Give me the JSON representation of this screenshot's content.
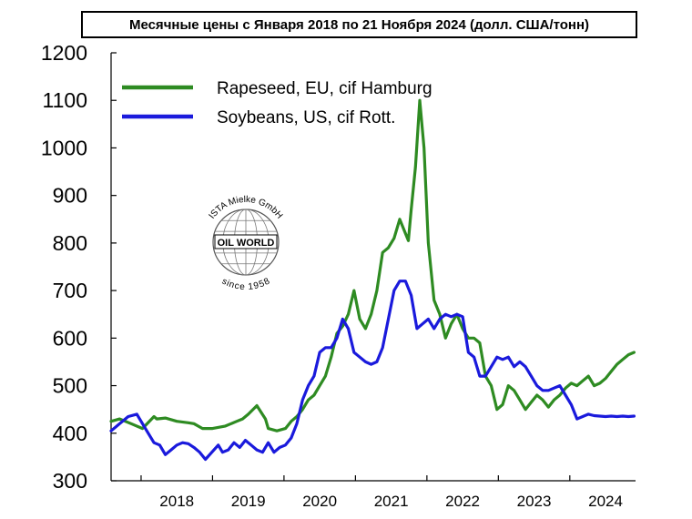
{
  "chart_data": {
    "type": "line",
    "title": "Месячные цены с Января 2018 по 21 Ноября 2024 (долл. США/тонн)",
    "xlabel": "",
    "ylabel": "",
    "ylim": [
      300,
      1200
    ],
    "yticks": [
      300,
      400,
      500,
      600,
      700,
      800,
      900,
      1000,
      1100,
      1200
    ],
    "x_range": [
      2017.58,
      2024.92
    ],
    "xticks": [
      "2018",
      "2019",
      "2020",
      "2021",
      "2022",
      "2023",
      "2024"
    ],
    "grid": false,
    "legend_position": "top-left",
    "series": [
      {
        "name": "Rapeseed, EU, cif Hamburg",
        "color": "#2e8b22",
        "x": [
          2017.58,
          2017.7,
          2017.86,
          2018.02,
          2018.18,
          2018.22,
          2018.34,
          2018.5,
          2018.66,
          2018.74,
          2018.86,
          2019.0,
          2019.18,
          2019.34,
          2019.42,
          2019.5,
          2019.62,
          2019.74,
          2019.78,
          2019.9,
          2020.02,
          2020.1,
          2020.18,
          2020.26,
          2020.34,
          2020.42,
          2020.5,
          2020.58,
          2020.66,
          2020.74,
          2020.82,
          2020.9,
          2020.98,
          2021.06,
          2021.14,
          2021.22,
          2021.3,
          2021.38,
          2021.46,
          2021.54,
          2021.62,
          2021.7,
          2021.74,
          2021.78,
          2021.84,
          2021.9,
          2021.96,
          2022.02,
          2022.1,
          2022.18,
          2022.26,
          2022.34,
          2022.42,
          2022.5,
          2022.58,
          2022.66,
          2022.74,
          2022.82,
          2022.9,
          2022.98,
          2023.06,
          2023.14,
          2023.22,
          2023.3,
          2023.38,
          2023.46,
          2023.54,
          2023.62,
          2023.7,
          2023.78,
          2023.86,
          2023.94,
          2024.02,
          2024.1,
          2024.18,
          2024.26,
          2024.34,
          2024.42,
          2024.5,
          2024.58,
          2024.66,
          2024.74,
          2024.82,
          2024.9
        ],
        "y": [
          425,
          430,
          420,
          410,
          435,
          430,
          432,
          425,
          422,
          420,
          410,
          410,
          415,
          425,
          430,
          440,
          458,
          430,
          410,
          405,
          410,
          425,
          435,
          450,
          470,
          480,
          500,
          520,
          560,
          610,
          625,
          650,
          700,
          640,
          620,
          650,
          700,
          780,
          790,
          810,
          850,
          820,
          805,
          870,
          960,
          1100,
          1000,
          800,
          680,
          650,
          600,
          630,
          650,
          620,
          600,
          600,
          590,
          520,
          500,
          450,
          460,
          500,
          490,
          470,
          450,
          465,
          480,
          470,
          455,
          470,
          480,
          495,
          505,
          500,
          510,
          520,
          500,
          505,
          515,
          530,
          545,
          555,
          565,
          570
        ],
        "note": ""
      },
      {
        "name": "Soybeans, US, cif Rott.",
        "color": "#1a1adc",
        "x": [
          2017.58,
          2017.7,
          2017.82,
          2017.94,
          2018.02,
          2018.1,
          2018.18,
          2018.26,
          2018.34,
          2018.42,
          2018.5,
          2018.58,
          2018.66,
          2018.74,
          2018.82,
          2018.9,
          2018.96,
          2019.02,
          2019.08,
          2019.14,
          2019.22,
          2019.3,
          2019.38,
          2019.46,
          2019.54,
          2019.62,
          2019.7,
          2019.78,
          2019.86,
          2019.94,
          2020.02,
          2020.1,
          2020.18,
          2020.26,
          2020.34,
          2020.42,
          2020.5,
          2020.58,
          2020.66,
          2020.74,
          2020.82,
          2020.9,
          2020.98,
          2021.06,
          2021.14,
          2021.22,
          2021.3,
          2021.38,
          2021.46,
          2021.54,
          2021.62,
          2021.7,
          2021.78,
          2021.86,
          2021.94,
          2022.02,
          2022.1,
          2022.18,
          2022.26,
          2022.34,
          2022.42,
          2022.5,
          2022.58,
          2022.66,
          2022.74,
          2022.82,
          2022.9,
          2022.98,
          2023.06,
          2023.14,
          2023.22,
          2023.3,
          2023.38,
          2023.46,
          2023.54,
          2023.62,
          2023.7,
          2023.78,
          2023.86,
          2023.94,
          2024.02,
          2024.1,
          2024.18,
          2024.26,
          2024.34,
          2024.42,
          2024.5,
          2024.58,
          2024.66,
          2024.74,
          2024.82,
          2024.9
        ],
        "y": [
          405,
          420,
          435,
          440,
          420,
          400,
          380,
          375,
          355,
          365,
          375,
          380,
          378,
          370,
          360,
          345,
          355,
          365,
          375,
          360,
          365,
          380,
          370,
          385,
          375,
          365,
          360,
          380,
          360,
          370,
          375,
          390,
          420,
          470,
          500,
          520,
          570,
          580,
          580,
          600,
          640,
          620,
          570,
          560,
          550,
          545,
          550,
          580,
          640,
          700,
          720,
          720,
          690,
          620,
          630,
          640,
          620,
          640,
          650,
          645,
          650,
          645,
          570,
          560,
          520,
          520,
          540,
          560,
          555,
          560,
          540,
          550,
          540,
          520,
          500,
          490,
          490,
          495,
          500,
          480,
          460,
          430,
          435,
          440,
          437,
          436,
          435,
          436,
          435,
          436,
          435,
          436
        ],
        "note": ""
      }
    ]
  },
  "watermark": {
    "top_text": "ISTA Mielke GmbH",
    "main_text": "OIL WORLD",
    "bottom_text": "since 1958"
  }
}
